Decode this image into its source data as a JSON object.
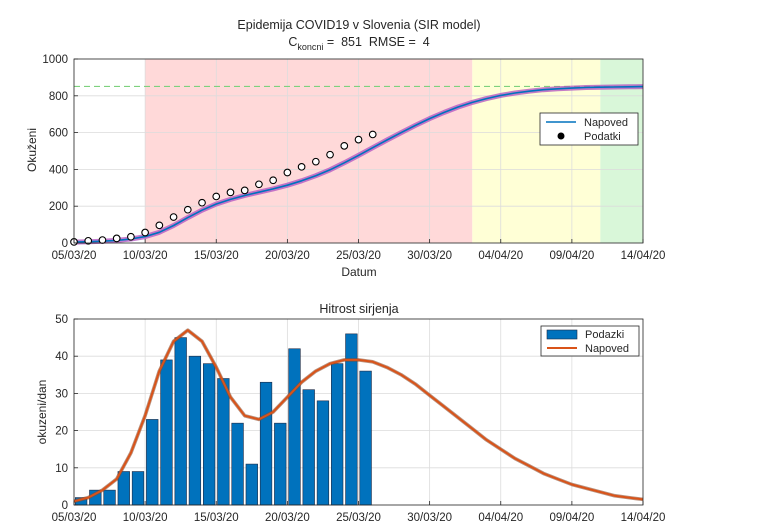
{
  "chart_data": [
    {
      "type": "line",
      "title": "Epidemija COVID19 v Slovenia (SIR model)",
      "subtitle": {
        "prefix": "C",
        "subscript": "koncni",
        "suffix": " =  851  RMSE =  4"
      },
      "xlabel": "Datum",
      "ylabel": "Okuženi",
      "xlim": [
        "2020-03-05",
        "2020-04-14"
      ],
      "ylim": [
        0,
        1000
      ],
      "x_ticks": [
        "05/03/20",
        "10/03/20",
        "15/03/20",
        "20/03/20",
        "25/03/20",
        "30/03/20",
        "04/04/20",
        "09/04/20",
        "14/04/20"
      ],
      "y_ticks": [
        "0",
        "200",
        "400",
        "600",
        "800",
        "1000"
      ],
      "grid": true,
      "legend": {
        "position": "top-right",
        "entries": [
          "Napoved",
          "Podatki"
        ]
      },
      "reference_line": {
        "y": 851,
        "style": "dashed",
        "color": "#7ed17e"
      },
      "background_bands": [
        {
          "from": "2020-03-10",
          "to": "2020-04-02",
          "color": "#ffd9d9"
        },
        {
          "from": "2020-04-02",
          "to": "2020-04-11",
          "color": "#ffffd6"
        },
        {
          "from": "2020-04-11",
          "to": "2020-04-14",
          "color": "#d9f7d9"
        }
      ],
      "series": [
        {
          "name": "Napoved",
          "kind": "line",
          "color": "#0072BD",
          "x": [
            "2020-03-05",
            "2020-03-06",
            "2020-03-07",
            "2020-03-08",
            "2020-03-09",
            "2020-03-10",
            "2020-03-11",
            "2020-03-12",
            "2020-03-13",
            "2020-03-14",
            "2020-03-15",
            "2020-03-16",
            "2020-03-17",
            "2020-03-18",
            "2020-03-19",
            "2020-03-20",
            "2020-03-21",
            "2020-03-22",
            "2020-03-23",
            "2020-03-24",
            "2020-03-25",
            "2020-03-26",
            "2020-03-27",
            "2020-03-28",
            "2020-03-29",
            "2020-03-30",
            "2020-03-31",
            "2020-04-01",
            "2020-04-02",
            "2020-04-03",
            "2020-04-04",
            "2020-04-05",
            "2020-04-06",
            "2020-04-07",
            "2020-04-08",
            "2020-04-09",
            "2020-04-10",
            "2020-04-11",
            "2020-04-12",
            "2020-04-13",
            "2020-04-14"
          ],
          "y": [
            5,
            7,
            10,
            14,
            22,
            35,
            58,
            95,
            138,
            178,
            212,
            237,
            258,
            276,
            294,
            314,
            338,
            366,
            398,
            436,
            476,
            518,
            560,
            600,
            639,
            676,
            709,
            739,
            764,
            785,
            802,
            815,
            825,
            833,
            838,
            842,
            845,
            847,
            848,
            849,
            850
          ]
        },
        {
          "name": "Podatki",
          "kind": "scatter",
          "color": "#000000",
          "x": [
            "2020-03-05",
            "2020-03-06",
            "2020-03-07",
            "2020-03-08",
            "2020-03-09",
            "2020-03-10",
            "2020-03-11",
            "2020-03-12",
            "2020-03-13",
            "2020-03-14",
            "2020-03-15",
            "2020-03-16",
            "2020-03-17",
            "2020-03-18",
            "2020-03-19",
            "2020-03-20",
            "2020-03-21",
            "2020-03-22",
            "2020-03-23",
            "2020-03-24",
            "2020-03-25",
            "2020-03-26"
          ],
          "y": [
            6,
            12,
            16,
            25,
            34,
            57,
            96,
            141,
            181,
            219,
            253,
            275,
            286,
            319,
            341,
            383,
            414,
            442,
            480,
            528,
            562,
            590
          ]
        }
      ]
    },
    {
      "type": "bar",
      "title": "Hitrost sirjenja",
      "xlabel": "",
      "ylabel": "okuzeni/dan",
      "xlim": [
        "2020-03-05",
        "2020-04-14"
      ],
      "ylim": [
        0,
        50
      ],
      "x_ticks": [
        "05/03/20",
        "10/03/20",
        "15/03/20",
        "20/03/20",
        "25/03/20",
        "30/03/20",
        "04/04/20",
        "09/04/20",
        "14/04/20"
      ],
      "y_ticks": [
        "0",
        "10",
        "20",
        "30",
        "40",
        "50"
      ],
      "grid": true,
      "legend": {
        "position": "top-right",
        "entries": [
          "Podazki",
          "Napoved"
        ]
      },
      "series": [
        {
          "name": "Podazki",
          "kind": "bar",
          "color": "#0072BD",
          "x": [
            "2020-03-05",
            "2020-03-06",
            "2020-03-07",
            "2020-03-08",
            "2020-03-09",
            "2020-03-10",
            "2020-03-11",
            "2020-03-12",
            "2020-03-13",
            "2020-03-14",
            "2020-03-15",
            "2020-03-16",
            "2020-03-17",
            "2020-03-18",
            "2020-03-19",
            "2020-03-20",
            "2020-03-21",
            "2020-03-22",
            "2020-03-23",
            "2020-03-24",
            "2020-03-25"
          ],
          "y": [
            2,
            4,
            4,
            9,
            9,
            23,
            39,
            45,
            40,
            38,
            34,
            22,
            11,
            33,
            22,
            42,
            31,
            28,
            38,
            46,
            36
          ]
        },
        {
          "name": "Napoved",
          "kind": "line",
          "color": "#D95319",
          "x": [
            "2020-03-05",
            "2020-03-06",
            "2020-03-07",
            "2020-03-08",
            "2020-03-09",
            "2020-03-10",
            "2020-03-11",
            "2020-03-12",
            "2020-03-13",
            "2020-03-14",
            "2020-03-15",
            "2020-03-16",
            "2020-03-17",
            "2020-03-18",
            "2020-03-19",
            "2020-03-20",
            "2020-03-21",
            "2020-03-22",
            "2020-03-23",
            "2020-03-24",
            "2020-03-25",
            "2020-03-26",
            "2020-03-27",
            "2020-03-28",
            "2020-03-29",
            "2020-03-30",
            "2020-03-31",
            "2020-04-01",
            "2020-04-02",
            "2020-04-03",
            "2020-04-04",
            "2020-04-05",
            "2020-04-06",
            "2020-04-07",
            "2020-04-08",
            "2020-04-09",
            "2020-04-10",
            "2020-04-11",
            "2020-04-12",
            "2020-04-13",
            "2020-04-14"
          ],
          "y": [
            1,
            2,
            4,
            7,
            14,
            24,
            36,
            44,
            47,
            44,
            37,
            29,
            24,
            23,
            25,
            29,
            33,
            36,
            38,
            39,
            39,
            38.5,
            37,
            35,
            32.5,
            29.5,
            26.5,
            23.5,
            20.5,
            17.5,
            15,
            12.5,
            10.5,
            8.5,
            7,
            5.5,
            4.5,
            3.5,
            2.5,
            2,
            1.5
          ]
        }
      ]
    }
  ]
}
